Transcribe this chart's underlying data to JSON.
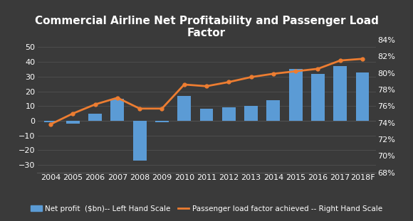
{
  "title": "Commercial Airline Net Profitability and Passenger Load\nFactor",
  "categories": [
    "2004",
    "2005",
    "2006",
    "2007",
    "2008",
    "2009",
    "2010",
    "2011",
    "2012",
    "2013",
    "2014",
    "2015",
    "2016",
    "2017",
    "2018F"
  ],
  "net_profit": [
    -1,
    -2,
    5,
    15,
    -27,
    -1,
    17,
    8,
    9,
    10,
    14,
    35,
    32,
    37,
    33
  ],
  "load_factor": [
    0.738,
    0.751,
    0.762,
    0.77,
    0.757,
    0.757,
    0.786,
    0.784,
    0.789,
    0.795,
    0.799,
    0.802,
    0.805,
    0.815,
    0.817
  ],
  "bar_color": "#5B9BD5",
  "line_color": "#ED7D31",
  "background_color": "#3A3A3A",
  "text_color": "#FFFFFF",
  "grid_color": "#555555",
  "ylim_left": [
    -35,
    55
  ],
  "ylim_right": [
    0.68,
    0.84
  ],
  "yticks_left": [
    -30,
    -20,
    -10,
    0,
    10,
    20,
    30,
    40,
    50
  ],
  "yticks_right": [
    0.68,
    0.7,
    0.72,
    0.74,
    0.76,
    0.78,
    0.8,
    0.82,
    0.84
  ],
  "ytick_right_labels": [
    "68%",
    "70%",
    "72%",
    "74%",
    "76%",
    "78%",
    "80%",
    "82%",
    "84%"
  ],
  "legend_bar_label": "Net profit  ($bn)-- Left Hand Scale",
  "legend_line_label": "Passenger load factor achieved -- Right Hand Scale",
  "title_fontsize": 11,
  "tick_fontsize": 8,
  "legend_fontsize": 7.5
}
